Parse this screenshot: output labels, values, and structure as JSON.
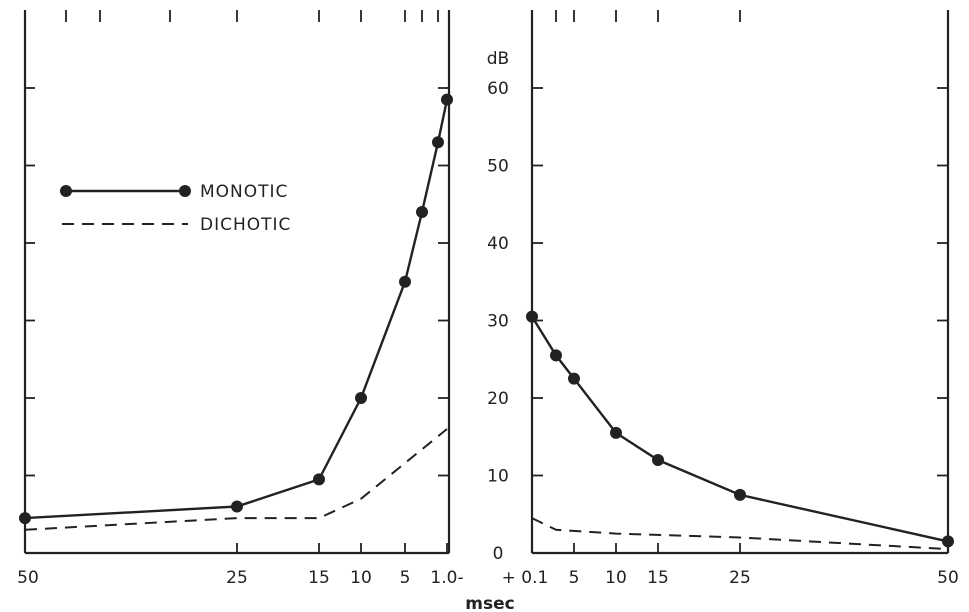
{
  "chart_data": {
    "type": "line",
    "xlabel": "msec",
    "ylabel": "dB",
    "ylim": [
      0,
      60
    ],
    "yticks": [
      "0",
      "10",
      "20",
      "30",
      "40",
      "50",
      "60"
    ],
    "legend": [
      {
        "name": "MONOTIC",
        "style": "solid-with-markers"
      },
      {
        "name": "DICHOTIC",
        "style": "dashed"
      }
    ],
    "left_panel": {
      "xticks": [
        "50",
        "25",
        "15",
        "10",
        "5",
        "1.0-"
      ],
      "x_order": "decreasing",
      "series": [
        {
          "name": "MONOTIC",
          "x": [
            50,
            25,
            15,
            10,
            5,
            3,
            2,
            1
          ],
          "y": [
            4.5,
            6,
            9.5,
            20,
            35,
            44,
            53,
            58.5
          ]
        },
        {
          "name": "DICHOTIC",
          "x": [
            50,
            25,
            15,
            10,
            1
          ],
          "y": [
            3,
            4.5,
            4.5,
            7,
            16
          ]
        }
      ]
    },
    "right_panel": {
      "xticks": [
        "+ 0.1",
        "5",
        "10",
        "15",
        "25",
        "50"
      ],
      "x_order": "increasing",
      "series": [
        {
          "name": "MONOTIC",
          "x": [
            0.1,
            3,
            5,
            10,
            15,
            25,
            50
          ],
          "y": [
            30.5,
            25.5,
            22.5,
            15.5,
            12,
            7.5,
            1.5
          ]
        },
        {
          "name": "DICHOTIC",
          "x": [
            0.1,
            3,
            10,
            25,
            50
          ],
          "y": [
            4.5,
            3,
            2.5,
            2,
            0.5
          ]
        }
      ]
    }
  }
}
